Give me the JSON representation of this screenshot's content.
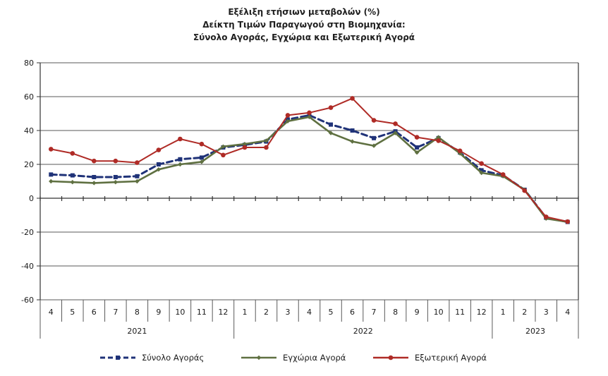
{
  "title": {
    "line1": "Εξέλιξη ετήσιων μεταβολών (%)",
    "line2": "Δείκτη Τιμών Παραγωγού στη Βιομηχανία:",
    "line3": "Σύνολο Αγοράς, Εγχώρια και Εξωτερική Αγορά"
  },
  "colors": {
    "total": "#1F3278",
    "domestic": "#5F7041",
    "external": "#AF2B26",
    "grid": "#595959",
    "axis": "#333333",
    "text": "#1a1a1a"
  },
  "chart_data": {
    "type": "line",
    "title": "Εξέλιξη ετήσιων μεταβολών (%) Δείκτη Τιμών Παραγωγού στη Βιομηχανία: Σύνολο Αγοράς, Εγχώρια και Εξωτερική Αγορά",
    "xlabel": "",
    "ylabel": "",
    "ylim": [
      -60,
      80
    ],
    "yticks": [
      80,
      60,
      40,
      20,
      0,
      -20,
      -40,
      -60
    ],
    "grid": true,
    "legend_position": "bottom",
    "x_months": [
      "4",
      "5",
      "6",
      "7",
      "8",
      "9",
      "10",
      "11",
      "12",
      "1",
      "2",
      "3",
      "4",
      "5",
      "6",
      "7",
      "8",
      "9",
      "10",
      "11",
      "12",
      "1",
      "2",
      "3",
      "4"
    ],
    "year_groups": [
      {
        "label": "2021",
        "span": 9
      },
      {
        "label": "2022",
        "span": 12
      },
      {
        "label": "2023",
        "span": 4
      }
    ],
    "series": [
      {
        "key": "total-market",
        "name": "Σύνολο Αγοράς",
        "color_key": "total",
        "style": "dashed",
        "marker": "square",
        "values": [
          14,
          13.5,
          12.5,
          12.5,
          13,
          20,
          23,
          24,
          30,
          31.5,
          33.5,
          46.5,
          49,
          43.5,
          40,
          35.5,
          39.5,
          30,
          35.5,
          27,
          16.5,
          13.5,
          5,
          -11.5,
          -14
        ]
      },
      {
        "key": "domestic-market",
        "name": "Εγχώρια Αγορά",
        "color_key": "domestic",
        "style": "solid",
        "marker": "diamond",
        "values": [
          10,
          9.5,
          9,
          9.5,
          10,
          17,
          20,
          21.5,
          30.5,
          32,
          34,
          45.5,
          48,
          38.5,
          33.5,
          31,
          38.5,
          27,
          36,
          26.5,
          15,
          13,
          5,
          -12,
          -14
        ]
      },
      {
        "key": "external-market",
        "name": "Εξωτερική Αγορά",
        "color_key": "external",
        "style": "solid",
        "marker": "circle",
        "values": [
          29,
          26.5,
          22,
          22,
          21,
          28.5,
          35,
          32,
          25.5,
          30,
          30,
          49,
          50.5,
          53.5,
          59,
          46,
          44,
          36,
          34,
          28,
          20.5,
          14,
          4.5,
          -11,
          -13.8
        ]
      }
    ]
  }
}
